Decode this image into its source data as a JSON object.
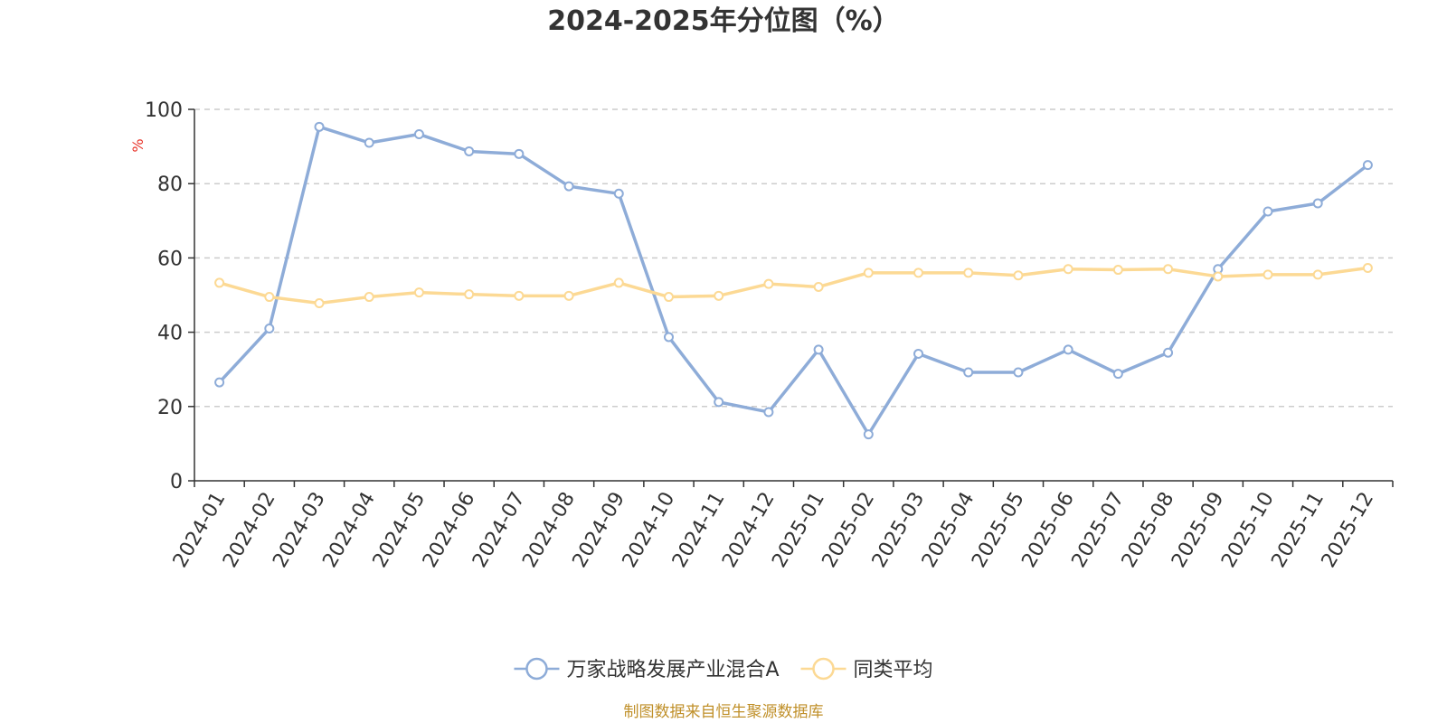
{
  "chart_data": {
    "type": "line",
    "title": "2024-2025年分位图（%）",
    "ylabel": "%",
    "ylim": [
      0,
      100
    ],
    "yticks": [
      0,
      20,
      40,
      60,
      80,
      100
    ],
    "grid": true,
    "legend_position": "bottom",
    "categories": [
      "2024-01",
      "2024-02",
      "2024-03",
      "2024-04",
      "2024-05",
      "2024-06",
      "2024-07",
      "2024-08",
      "2024-09",
      "2024-10",
      "2024-11",
      "2024-12",
      "2025-01",
      "2025-02",
      "2025-03",
      "2025-04",
      "2025-05",
      "2025-06",
      "2025-07",
      "2025-08",
      "2025-09",
      "2025-10",
      "2025-11",
      "2025-12"
    ],
    "series": [
      {
        "name": "万家战略发展产业混合A",
        "color": "#8eacd8",
        "values": [
          26.5,
          41.0,
          95.3,
          91.0,
          93.3,
          88.7,
          88.0,
          79.3,
          77.3,
          38.7,
          21.2,
          18.5,
          35.3,
          12.5,
          34.2,
          29.2,
          29.2,
          35.3,
          28.8,
          34.5,
          57.0,
          72.5,
          74.7,
          85.0
        ]
      },
      {
        "name": "同类平均",
        "color": "#fcd994",
        "values": [
          53.3,
          49.5,
          47.8,
          49.5,
          50.7,
          50.2,
          49.8,
          49.8,
          53.3,
          49.5,
          49.8,
          53.0,
          52.2,
          56.0,
          56.0,
          56.0,
          55.3,
          57.0,
          56.8,
          57.0,
          55.0,
          55.5,
          55.5,
          57.3
        ]
      }
    ],
    "source": "制图数据来自恒生聚源数据库"
  }
}
